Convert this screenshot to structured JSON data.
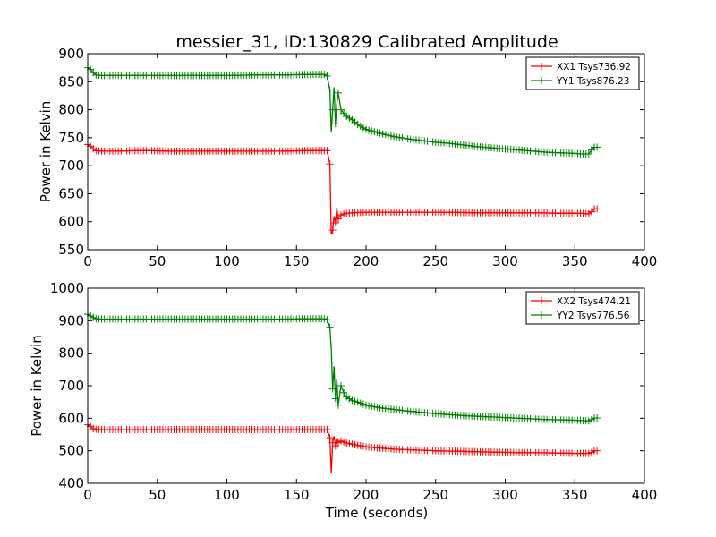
{
  "figure_title": "messier_31, ID:130829 Calibrated Amplitude",
  "chart_data": [
    {
      "type": "line",
      "xlabel": "",
      "ylabel": "Power in Kelvin",
      "xlim": [
        0,
        400
      ],
      "ylim": [
        550,
        900
      ],
      "xticks": [
        0,
        50,
        100,
        150,
        200,
        250,
        300,
        350,
        400
      ],
      "yticks": [
        550,
        600,
        650,
        700,
        750,
        800,
        850,
        900
      ],
      "grid": false,
      "legend_position": "top-right",
      "series": [
        {
          "name": "XX1 Tsys736.92",
          "color": "#ff0000",
          "marker": "+",
          "x": [
            0,
            2,
            4,
            6,
            10,
            20,
            40,
            60,
            80,
            100,
            120,
            140,
            160,
            170,
            172,
            174,
            175,
            176,
            177,
            178,
            179,
            180,
            182,
            185,
            190,
            200,
            220,
            250,
            280,
            300,
            320,
            340,
            350,
            355,
            360,
            362,
            364,
            366
          ],
          "y": [
            738,
            735,
            730,
            727,
            726,
            726,
            727,
            726,
            726,
            726,
            726,
            726,
            727,
            727,
            727,
            703,
            577,
            585,
            610,
            598,
            625,
            605,
            612,
            615,
            616,
            617,
            617,
            617,
            616,
            616,
            616,
            615,
            615,
            615,
            614,
            618,
            623,
            623
          ]
        },
        {
          "name": "YY1 Tsys876.23",
          "color": "#008000",
          "marker": "+",
          "x": [
            0,
            2,
            4,
            6,
            10,
            20,
            40,
            60,
            80,
            100,
            120,
            140,
            160,
            170,
            172,
            174,
            175,
            176,
            177,
            178,
            179,
            180,
            182,
            185,
            190,
            195,
            200,
            210,
            220,
            230,
            240,
            250,
            260,
            270,
            280,
            290,
            300,
            310,
            320,
            330,
            340,
            350,
            355,
            360,
            362,
            364,
            366
          ],
          "y": [
            875,
            872,
            866,
            862,
            861,
            861,
            861,
            861,
            861,
            861,
            862,
            862,
            863,
            863,
            860,
            835,
            760,
            800,
            840,
            775,
            810,
            830,
            800,
            790,
            782,
            772,
            765,
            758,
            752,
            748,
            745,
            742,
            740,
            737,
            734,
            732,
            730,
            728,
            726,
            724,
            723,
            722,
            721,
            721,
            728,
            733,
            733
          ]
        }
      ]
    },
    {
      "type": "line",
      "xlabel": "Time (seconds)",
      "ylabel": "Power in Kelvin",
      "xlim": [
        0,
        400
      ],
      "ylim": [
        400,
        1000
      ],
      "xticks": [
        0,
        50,
        100,
        150,
        200,
        250,
        300,
        350,
        400
      ],
      "yticks": [
        400,
        500,
        600,
        700,
        800,
        900,
        1000
      ],
      "grid": false,
      "legend_position": "top-right",
      "series": [
        {
          "name": "XX2 Tsys474.21",
          "color": "#ff0000",
          "marker": "+",
          "x": [
            0,
            2,
            4,
            6,
            10,
            20,
            40,
            60,
            80,
            100,
            120,
            140,
            160,
            170,
            172,
            174,
            175,
            176,
            177,
            178,
            179,
            180,
            182,
            185,
            190,
            200,
            220,
            250,
            280,
            300,
            320,
            340,
            350,
            360,
            362,
            364,
            366
          ],
          "y": [
            580,
            575,
            568,
            566,
            565,
            565,
            565,
            565,
            565,
            565,
            565,
            565,
            565,
            565,
            565,
            540,
            430,
            525,
            545,
            515,
            540,
            525,
            530,
            525,
            520,
            512,
            505,
            500,
            497,
            495,
            494,
            493,
            492,
            492,
            495,
            500,
            500
          ]
        },
        {
          "name": "YY2 Tsys776.56",
          "color": "#008000",
          "marker": "+",
          "x": [
            0,
            2,
            4,
            6,
            10,
            20,
            40,
            60,
            80,
            100,
            120,
            140,
            160,
            170,
            172,
            174,
            175,
            176,
            177,
            178,
            179,
            180,
            182,
            185,
            190,
            195,
            200,
            210,
            220,
            230,
            240,
            250,
            260,
            270,
            280,
            290,
            300,
            310,
            320,
            330,
            340,
            350,
            355,
            360,
            362,
            364,
            366
          ],
          "y": [
            920,
            915,
            910,
            906,
            905,
            905,
            905,
            905,
            905,
            905,
            905,
            905,
            906,
            906,
            903,
            880,
            815,
            690,
            760,
            660,
            720,
            640,
            700,
            668,
            655,
            648,
            640,
            632,
            627,
            622,
            618,
            614,
            611,
            608,
            606,
            604,
            602,
            600,
            598,
            596,
            595,
            594,
            593,
            592,
            596,
            601,
            601
          ]
        }
      ]
    }
  ]
}
